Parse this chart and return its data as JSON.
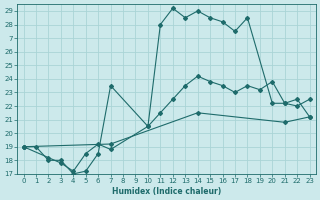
{
  "title": "",
  "xlabel": "Humidex (Indice chaleur)",
  "background_color": "#cce9eb",
  "grid_color": "#aad4d6",
  "line_color": "#1e6b6b",
  "xlim": [
    -0.5,
    23.5
  ],
  "ylim": [
    17,
    29.5
  ],
  "yticks": [
    17,
    18,
    19,
    20,
    21,
    22,
    23,
    24,
    25,
    26,
    27,
    28,
    29
  ],
  "xticks": [
    0,
    1,
    2,
    3,
    4,
    5,
    6,
    7,
    8,
    9,
    10,
    11,
    12,
    13,
    14,
    15,
    16,
    17,
    18,
    19,
    20,
    21,
    22,
    23
  ],
  "line1_x": [
    0,
    1,
    2,
    3,
    4,
    5,
    6,
    7,
    10,
    11,
    12,
    13,
    14,
    15,
    16,
    17,
    18,
    20,
    21,
    22,
    23
  ],
  "line1_y": [
    19,
    19,
    18,
    18,
    17,
    17.2,
    18.5,
    23.5,
    20.5,
    28,
    29.2,
    28.5,
    29.0,
    28.5,
    28.2,
    27.5,
    28.5,
    22.2,
    22.2,
    22.5,
    21.2
  ],
  "line2_x": [
    0,
    2,
    3,
    4,
    5,
    6,
    7,
    10,
    11,
    12,
    13,
    14,
    15,
    16,
    17,
    18,
    19,
    20,
    21,
    22,
    23
  ],
  "line2_y": [
    19,
    18.2,
    17.8,
    17.2,
    18.5,
    19.2,
    18.8,
    20.5,
    21.5,
    22.5,
    23.5,
    24.2,
    23.8,
    23.5,
    23.0,
    23.5,
    23.2,
    23.8,
    22.2,
    22.0,
    22.5
  ],
  "line3_x": [
    0,
    7,
    14,
    21,
    23
  ],
  "line3_y": [
    19.0,
    19.2,
    21.5,
    20.8,
    21.2
  ]
}
